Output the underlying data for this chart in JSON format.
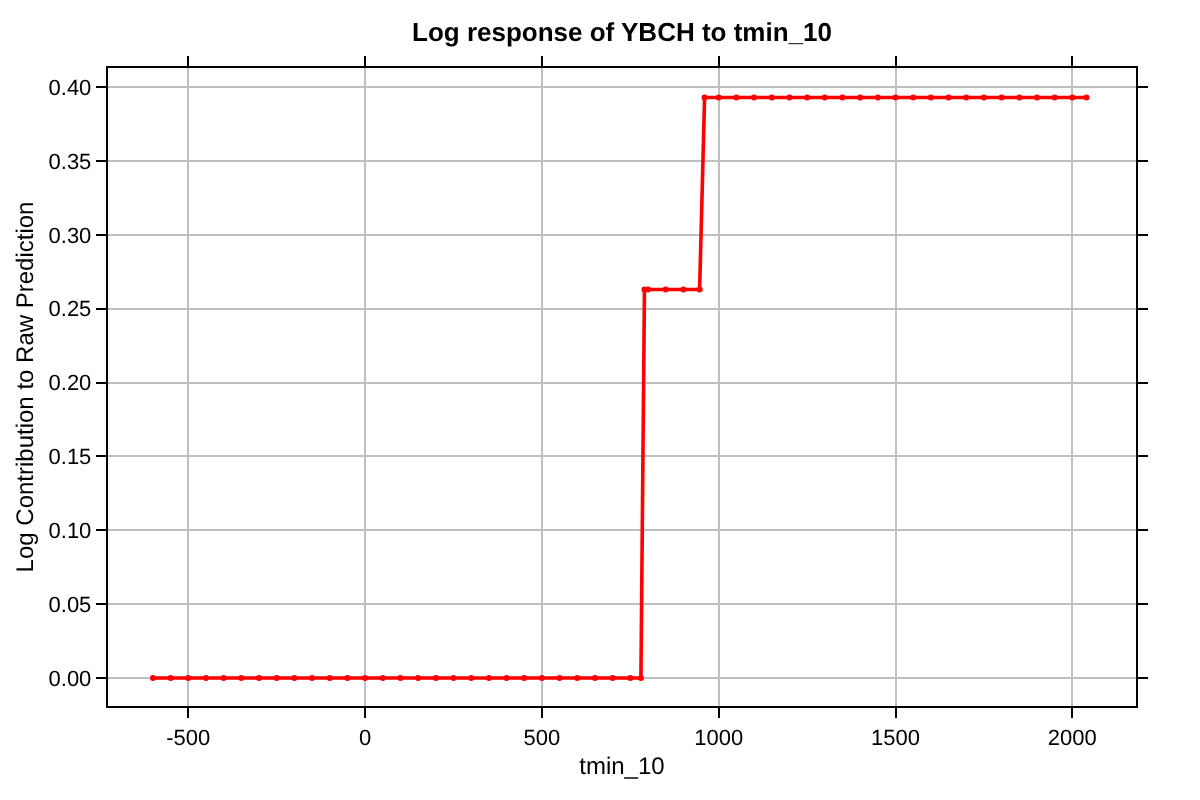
{
  "chart_data": {
    "type": "line",
    "title": "Log response of YBCH to tmin_10",
    "xlabel": "tmin_10",
    "ylabel": "Log Contribution to Raw Prediction",
    "x": [
      -600,
      -550,
      -500,
      -450,
      -400,
      -350,
      -300,
      -250,
      -200,
      -150,
      -100,
      -50,
      0,
      50,
      100,
      150,
      200,
      250,
      300,
      350,
      400,
      450,
      500,
      550,
      600,
      650,
      700,
      750,
      780,
      790,
      800,
      850,
      900,
      946,
      960,
      1000,
      1050,
      1100,
      1150,
      1200,
      1250,
      1300,
      1350,
      1400,
      1450,
      1500,
      1550,
      1600,
      1650,
      1700,
      1750,
      1800,
      1850,
      1900,
      1950,
      2000,
      2040
    ],
    "series": [
      {
        "color": "#ff0000",
        "values": [
          0,
          0,
          0,
          0,
          0,
          0,
          0,
          0,
          0,
          0,
          0,
          0,
          0,
          0,
          0,
          0,
          0,
          0,
          0,
          0,
          0,
          0,
          0,
          0,
          0,
          0,
          0,
          0,
          0,
          0.263,
          0.263,
          0.263,
          0.263,
          0.263,
          0.393,
          0.393,
          0.393,
          0.393,
          0.393,
          0.393,
          0.393,
          0.393,
          0.393,
          0.393,
          0.393,
          0.393,
          0.393,
          0.393,
          0.393,
          0.393,
          0.393,
          0.393,
          0.393,
          0.393,
          0.393,
          0.393,
          0.393
        ]
      }
    ],
    "xlim": [
      -727,
      2180
    ],
    "ylim": [
      -0.019,
      0.413
    ],
    "xticks": [
      -500,
      0,
      500,
      1000,
      1500,
      2000
    ],
    "yticks": [
      {
        "value": 0,
        "label": "0.00"
      },
      {
        "value": 0.05,
        "label": "0.05"
      },
      {
        "value": 0.1,
        "label": "0.10"
      },
      {
        "value": 0.15,
        "label": "0.15"
      },
      {
        "value": 0.2,
        "label": "0.20"
      },
      {
        "value": 0.25,
        "label": "0.25"
      },
      {
        "value": 0.3,
        "label": "0.30"
      },
      {
        "value": 0.35,
        "label": "0.35"
      },
      {
        "value": 0.4,
        "label": "0.40"
      }
    ],
    "grid": true,
    "marker": "circle",
    "line_style": "solid"
  }
}
